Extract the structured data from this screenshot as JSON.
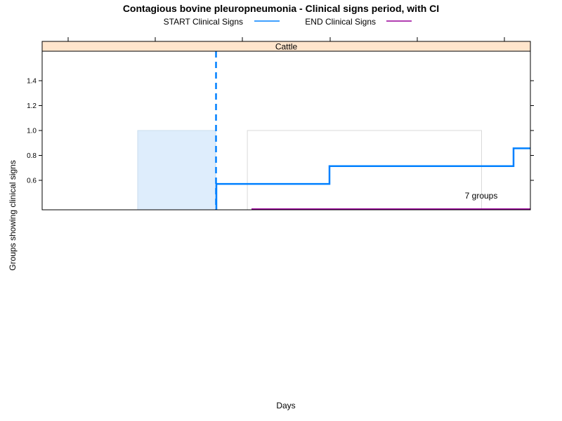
{
  "chart_data": {
    "type": "line",
    "title": "Contagious bovine pleuropneumonia - Clinical signs period, with CI",
    "xlabel": "Days",
    "ylabel": "Groups showing clinical signs",
    "panel": "Cattle",
    "annotation": "7 groups",
    "ylim": [
      0.5,
      1.5
    ],
    "yticks": [
      0.6,
      0.8,
      1.0,
      1.2,
      1.4
    ],
    "ytick_labels": [
      "0.6",
      "0.8",
      "1.0",
      "1.2",
      "1.4"
    ],
    "x_tick_count": 6,
    "grid": false,
    "legend_position": "top",
    "series": [
      {
        "name": "START Clinical Signs",
        "color": "#0080ff",
        "style": "step",
        "points": [
          [
            0.08,
            0.571
          ],
          [
            0.234,
            0.571
          ],
          [
            0.234,
            0.714
          ],
          [
            0.611,
            0.714
          ],
          [
            0.611,
            0.857
          ],
          [
            0.9,
            0.857
          ]
        ],
        "median_line": 0.0,
        "ci_band": [
          -0.16,
          0.0
        ],
        "ci_color": "#deedfc"
      },
      {
        "name": "END Clinical Signs",
        "color": "#990099",
        "style": "step",
        "points": [
          [
            0.075,
            0.5
          ],
          [
            0.9,
            0.5
          ]
        ],
        "ci_band": [
          0.075,
          0.9
        ],
        "ci_color": "#ffffff"
      }
    ]
  }
}
